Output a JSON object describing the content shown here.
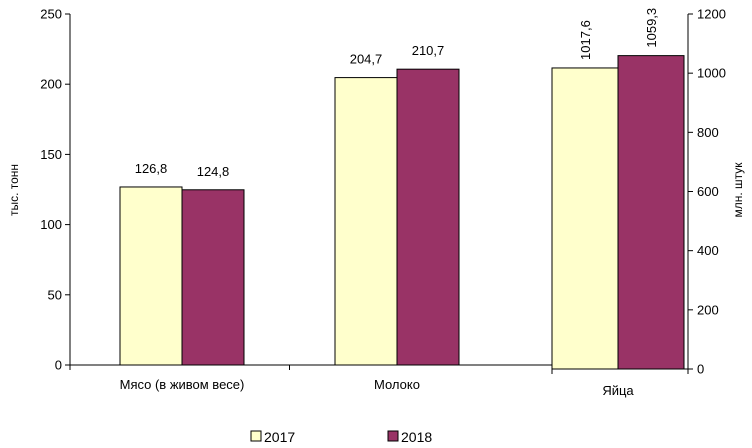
{
  "chart_data": {
    "type": "bar",
    "colors": {
      "2017": "#FFFFCC",
      "2018": "#993366"
    },
    "series": [
      {
        "name": "2017"
      },
      {
        "name": "2018"
      }
    ],
    "panels": [
      {
        "axis": "left",
        "ylabel": "тыс. тонн",
        "ylim": [
          0,
          250
        ],
        "yticks": [
          0,
          50,
          100,
          150,
          200,
          250
        ],
        "categories": [
          "Мясо (в живом весе)",
          "Молоко"
        ],
        "values": {
          "2017": [
            126.8,
            204.7
          ],
          "2018": [
            124.8,
            210.7
          ]
        },
        "value_labels": {
          "2017": [
            "126,8",
            "204,7"
          ],
          "2018": [
            "124,8",
            "210,7"
          ]
        }
      },
      {
        "axis": "right",
        "ylabel": "млн. штук",
        "ylim": [
          0,
          1200
        ],
        "yticks": [
          0,
          200,
          400,
          600,
          800,
          1000,
          1200
        ],
        "categories": [
          "Яйца"
        ],
        "values": {
          "2017": [
            1017.6
          ],
          "2018": [
            1059.3
          ]
        },
        "value_labels": {
          "2017": [
            "1017,6"
          ],
          "2018": [
            "1059,3"
          ]
        }
      }
    ],
    "legend": {
      "position": "bottom",
      "entries": [
        "2017",
        "2018"
      ]
    }
  }
}
